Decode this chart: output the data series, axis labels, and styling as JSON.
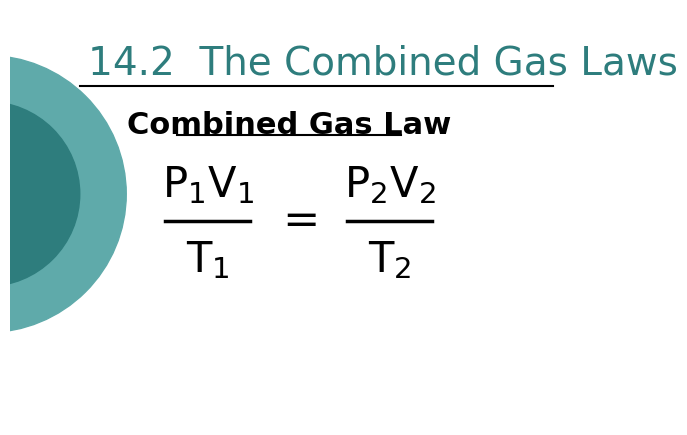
{
  "title": "14.2  The Combined Gas Laws",
  "title_color": "#2E7D7D",
  "title_fontsize": 28,
  "subtitle": "Combined Gas Law",
  "subtitle_fontsize": 22,
  "subtitle_color": "#000000",
  "bg_color": "#ffffff",
  "circle_color_outer": "#5FAAAA",
  "circle_color_inner": "#2E7D7D",
  "formula_fontsize": 30,
  "formula_color": "#000000",
  "divider_color": "#000000"
}
